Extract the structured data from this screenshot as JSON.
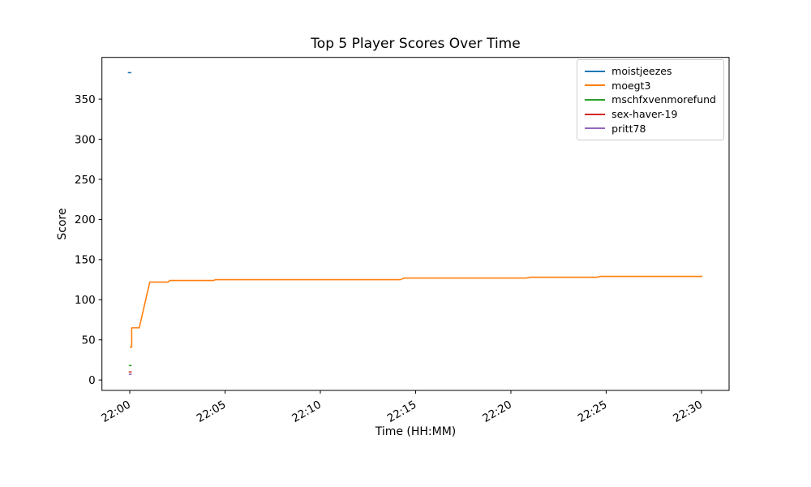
{
  "figure": {
    "background": "#ffffff",
    "axes_edge_color": "#000000",
    "legend_border_color": "#cccccc"
  },
  "chart_data": {
    "type": "line",
    "title": "Top 5 Player Scores Over Time",
    "xlabel": "Time (HH:MM)",
    "ylabel": "Score",
    "grid": false,
    "legend_position": "upper right",
    "x_unit": "minutes after 22:00",
    "x_tick_labels": [
      "22:00",
      "22:05",
      "22:10",
      "22:15",
      "22:20",
      "22:25",
      "22:30"
    ],
    "x_tick_minutes": [
      0,
      5,
      10,
      15,
      20,
      25,
      30
    ],
    "x_tick_rotation_deg": 30,
    "y_ticks": [
      0,
      50,
      100,
      150,
      200,
      250,
      300,
      350
    ],
    "xlim_minutes": [
      -1.46,
      31.45
    ],
    "ylim": [
      -13,
      402
    ],
    "series": [
      {
        "name": "moistjeezes",
        "color": "#1f77b4",
        "points": [
          [
            -0.1,
            383
          ],
          [
            0.08,
            383
          ]
        ]
      },
      {
        "name": "moegt3",
        "color": "#ff7f0e",
        "points": [
          [
            0.0,
            41
          ],
          [
            0.1,
            41
          ],
          [
            0.1,
            65
          ],
          [
            0.5,
            65
          ],
          [
            0.7,
            86
          ],
          [
            1.05,
            122
          ],
          [
            2.0,
            122
          ],
          [
            2.1,
            124
          ],
          [
            4.4,
            124
          ],
          [
            4.5,
            125
          ],
          [
            14.2,
            125
          ],
          [
            14.4,
            127
          ],
          [
            20.8,
            127
          ],
          [
            21.0,
            128
          ],
          [
            24.5,
            128
          ],
          [
            24.7,
            129
          ],
          [
            30.05,
            129
          ]
        ]
      },
      {
        "name": "mschfxvenmorefund",
        "color": "#2ca02c",
        "points": [
          [
            -0.05,
            18
          ],
          [
            0.1,
            18
          ]
        ]
      },
      {
        "name": "sex-haver-19",
        "color": "#d62728",
        "points": [
          [
            -0.05,
            10
          ],
          [
            0.1,
            10
          ]
        ]
      },
      {
        "name": "pritt78",
        "color": "#9467bd",
        "points": [
          [
            -0.05,
            7
          ],
          [
            0.1,
            7
          ]
        ]
      }
    ]
  }
}
